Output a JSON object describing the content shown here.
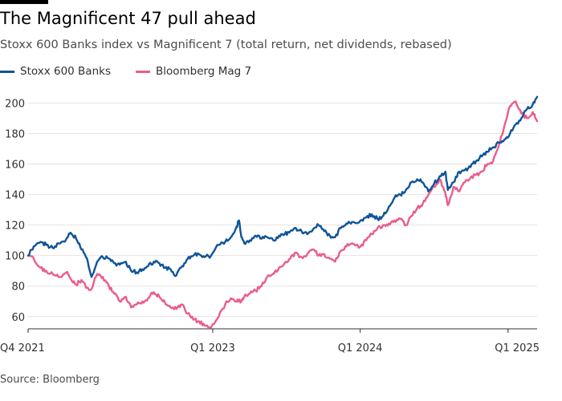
{
  "title": "The Magnificent 47 pull ahead",
  "subtitle": "Stoxx 600 Banks index vs Magnificent 7 (total return, net dividends, rebased)",
  "source": "Source: Bloomberg",
  "colors": {
    "banks": "#0f5499",
    "mag7": "#e95d8c",
    "grid": "#e6e2de",
    "axis": "#33302e",
    "text": "#33302e"
  },
  "chart_data": {
    "type": "line",
    "title": "The Magnificent 47 pull ahead",
    "subtitle": "Stoxx 600 Banks index vs Magnificent 7 (total return, net dividends, rebased)",
    "xlabel": "",
    "ylabel": "",
    "x_ticks": [
      {
        "date": "2021-10-01",
        "label": "Q4 2021"
      },
      {
        "date": "2023-01-01",
        "label": "Q1 2023"
      },
      {
        "date": "2024-01-01",
        "label": "Q1 2024"
      },
      {
        "date": "2025-01-01",
        "label": "Q1 2025"
      }
    ],
    "x_range": [
      "2021-10-01",
      "2025-03-14"
    ],
    "y_ticks": [
      60,
      80,
      100,
      120,
      140,
      160,
      180,
      200
    ],
    "ylim": [
      52,
      206
    ],
    "grid": true,
    "legend_position": "top-left",
    "series": [
      {
        "name": "Stoxx 600 Banks",
        "color": "#0f5499",
        "points": [
          [
            "2021-10-01",
            100
          ],
          [
            "2021-10-15",
            106
          ],
          [
            "2021-11-01",
            109
          ],
          [
            "2021-11-15",
            107
          ],
          [
            "2021-12-01",
            105
          ],
          [
            "2021-12-15",
            108
          ],
          [
            "2022-01-04",
            111
          ],
          [
            "2022-01-14",
            115
          ],
          [
            "2022-01-28",
            111
          ],
          [
            "2022-02-10",
            104
          ],
          [
            "2022-02-24",
            98
          ],
          [
            "2022-03-07",
            86
          ],
          [
            "2022-03-21",
            96
          ],
          [
            "2022-04-04",
            99
          ],
          [
            "2022-04-19",
            98
          ],
          [
            "2022-05-02",
            95
          ],
          [
            "2022-05-16",
            94
          ],
          [
            "2022-05-31",
            96
          ],
          [
            "2022-06-13",
            90
          ],
          [
            "2022-06-27",
            89
          ],
          [
            "2022-07-11",
            91
          ],
          [
            "2022-07-25",
            93
          ],
          [
            "2022-08-08",
            96
          ],
          [
            "2022-08-22",
            95
          ],
          [
            "2022-09-05",
            92
          ],
          [
            "2022-09-19",
            91
          ],
          [
            "2022-10-03",
            87
          ],
          [
            "2022-10-17",
            93
          ],
          [
            "2022-10-31",
            98
          ],
          [
            "2022-11-14",
            100
          ],
          [
            "2022-11-28",
            101
          ],
          [
            "2022-12-12",
            99
          ],
          [
            "2022-12-28",
            100
          ],
          [
            "2023-01-16",
            107
          ],
          [
            "2023-02-01",
            109
          ],
          [
            "2023-02-15",
            112
          ],
          [
            "2023-03-01",
            119
          ],
          [
            "2023-03-07",
            123
          ],
          [
            "2023-03-13",
            112
          ],
          [
            "2023-03-20",
            108
          ],
          [
            "2023-04-03",
            110
          ],
          [
            "2023-04-17",
            113
          ],
          [
            "2023-05-02",
            111
          ],
          [
            "2023-05-16",
            112
          ],
          [
            "2023-05-31",
            110
          ],
          [
            "2023-06-14",
            113
          ],
          [
            "2023-06-28",
            114
          ],
          [
            "2023-07-12",
            116
          ],
          [
            "2023-07-26",
            118
          ],
          [
            "2023-08-09",
            116
          ],
          [
            "2023-08-23",
            114
          ],
          [
            "2023-09-06",
            117
          ],
          [
            "2023-09-20",
            120
          ],
          [
            "2023-10-04",
            116
          ],
          [
            "2023-10-18",
            113
          ],
          [
            "2023-10-31",
            112
          ],
          [
            "2023-11-14",
            118
          ],
          [
            "2023-11-28",
            121
          ],
          [
            "2023-12-12",
            122
          ],
          [
            "2024-01-02",
            123
          ],
          [
            "2024-01-16",
            125
          ],
          [
            "2024-01-30",
            127
          ],
          [
            "2024-02-13",
            124
          ],
          [
            "2024-02-27",
            126
          ],
          [
            "2024-03-12",
            132
          ],
          [
            "2024-03-26",
            138
          ],
          [
            "2024-04-09",
            140
          ],
          [
            "2024-04-23",
            143
          ],
          [
            "2024-05-07",
            148
          ],
          [
            "2024-05-21",
            150
          ],
          [
            "2024-06-04",
            148
          ],
          [
            "2024-06-18",
            142
          ],
          [
            "2024-07-02",
            147
          ],
          [
            "2024-07-16",
            152
          ],
          [
            "2024-07-30",
            155
          ],
          [
            "2024-08-05",
            143
          ],
          [
            "2024-08-19",
            148
          ],
          [
            "2024-09-02",
            155
          ],
          [
            "2024-09-16",
            156
          ],
          [
            "2024-09-30",
            158
          ],
          [
            "2024-10-14",
            162
          ],
          [
            "2024-10-28",
            165
          ],
          [
            "2024-11-11",
            168
          ],
          [
            "2024-11-25",
            171
          ],
          [
            "2024-12-09",
            174
          ],
          [
            "2024-12-23",
            176
          ],
          [
            "2025-01-06",
            180
          ],
          [
            "2025-01-20",
            186
          ],
          [
            "2025-02-03",
            190
          ],
          [
            "2025-02-17",
            196
          ],
          [
            "2025-03-03",
            199
          ],
          [
            "2025-03-14",
            204
          ]
        ]
      },
      {
        "name": "Bloomberg Mag 7",
        "color": "#e95d8c",
        "points": [
          [
            "2021-10-01",
            100
          ],
          [
            "2021-10-15",
            98
          ],
          [
            "2021-11-01",
            92
          ],
          [
            "2021-11-15",
            90
          ],
          [
            "2021-12-01",
            88
          ],
          [
            "2021-12-15",
            86
          ],
          [
            "2022-01-04",
            89
          ],
          [
            "2022-01-14",
            85
          ],
          [
            "2022-01-28",
            81
          ],
          [
            "2022-02-10",
            84
          ],
          [
            "2022-02-24",
            79
          ],
          [
            "2022-03-07",
            78
          ],
          [
            "2022-03-21",
            88
          ],
          [
            "2022-04-04",
            86
          ],
          [
            "2022-04-19",
            80
          ],
          [
            "2022-05-02",
            75
          ],
          [
            "2022-05-16",
            70
          ],
          [
            "2022-05-31",
            73
          ],
          [
            "2022-06-13",
            66
          ],
          [
            "2022-06-27",
            68
          ],
          [
            "2022-07-11",
            70
          ],
          [
            "2022-07-25",
            72
          ],
          [
            "2022-08-08",
            76
          ],
          [
            "2022-08-22",
            73
          ],
          [
            "2022-09-05",
            69
          ],
          [
            "2022-09-19",
            66
          ],
          [
            "2022-10-03",
            65
          ],
          [
            "2022-10-17",
            68
          ],
          [
            "2022-10-31",
            62
          ],
          [
            "2022-11-14",
            58
          ],
          [
            "2022-11-28",
            57
          ],
          [
            "2022-12-12",
            54
          ],
          [
            "2022-12-28",
            53
          ],
          [
            "2023-01-16",
            60
          ],
          [
            "2023-02-01",
            68
          ],
          [
            "2023-02-15",
            72
          ],
          [
            "2023-03-01",
            70
          ],
          [
            "2023-03-07",
            71
          ],
          [
            "2023-03-13",
            70
          ],
          [
            "2023-03-20",
            73
          ],
          [
            "2023-04-03",
            75
          ],
          [
            "2023-04-17",
            77
          ],
          [
            "2023-05-02",
            80
          ],
          [
            "2023-05-16",
            86
          ],
          [
            "2023-05-31",
            88
          ],
          [
            "2023-06-14",
            92
          ],
          [
            "2023-06-28",
            95
          ],
          [
            "2023-07-12",
            98
          ],
          [
            "2023-07-26",
            102
          ],
          [
            "2023-08-09",
            99
          ],
          [
            "2023-08-23",
            101
          ],
          [
            "2023-09-06",
            104
          ],
          [
            "2023-09-20",
            100
          ],
          [
            "2023-10-04",
            101
          ],
          [
            "2023-10-18",
            98
          ],
          [
            "2023-10-31",
            96
          ],
          [
            "2023-11-14",
            103
          ],
          [
            "2023-11-28",
            106
          ],
          [
            "2023-12-12",
            108
          ],
          [
            "2024-01-02",
            106
          ],
          [
            "2024-01-16",
            110
          ],
          [
            "2024-01-30",
            114
          ],
          [
            "2024-02-13",
            118
          ],
          [
            "2024-02-27",
            120
          ],
          [
            "2024-03-12",
            121
          ],
          [
            "2024-03-26",
            123
          ],
          [
            "2024-04-09",
            124
          ],
          [
            "2024-04-23",
            120
          ],
          [
            "2024-05-07",
            126
          ],
          [
            "2024-05-21",
            131
          ],
          [
            "2024-06-04",
            134
          ],
          [
            "2024-06-18",
            140
          ],
          [
            "2024-07-02",
            145
          ],
          [
            "2024-07-16",
            150
          ],
          [
            "2024-07-30",
            141
          ],
          [
            "2024-08-05",
            133
          ],
          [
            "2024-08-19",
            145
          ],
          [
            "2024-09-02",
            142
          ],
          [
            "2024-09-16",
            148
          ],
          [
            "2024-09-30",
            151
          ],
          [
            "2024-10-14",
            153
          ],
          [
            "2024-10-28",
            155
          ],
          [
            "2024-11-11",
            160
          ],
          [
            "2024-11-25",
            162
          ],
          [
            "2024-12-09",
            172
          ],
          [
            "2024-12-23",
            185
          ],
          [
            "2025-01-06",
            198
          ],
          [
            "2025-01-20",
            201
          ],
          [
            "2025-02-03",
            193
          ],
          [
            "2025-02-17",
            190
          ],
          [
            "2025-03-03",
            194
          ],
          [
            "2025-03-14",
            188
          ]
        ]
      }
    ]
  }
}
